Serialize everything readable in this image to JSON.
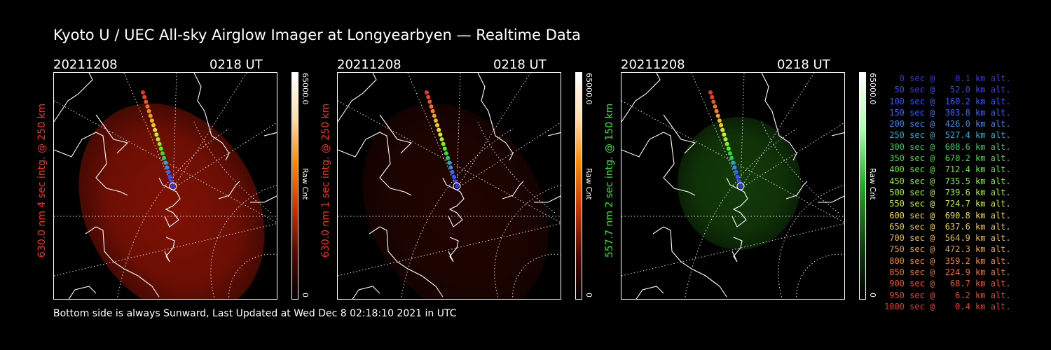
{
  "title": "Kyoto U / UEC All-sky Airglow Imager at Longyearbyen — Realtime Data",
  "footer": "Bottom side is always Sunward, Last Updated at Wed Dec  8 02:18:10 2021 in UTC",
  "panels": [
    {
      "date": "20211208",
      "time": "0218 UT",
      "side_label": "630.0 nm 4 sec intg. @ 250 km",
      "side_color": "#ff2a1a",
      "colorbar_max": "65000.0",
      "colorbar_min": "0",
      "colorbar_unit": "Raw Cnt",
      "tint": "red",
      "brightness": "bright"
    },
    {
      "date": "20211208",
      "time": "0218 UT",
      "side_label": "630.0 nm 1 sec intg. @ 250 km",
      "side_color": "#ff2a1a",
      "colorbar_max": "65000.0",
      "colorbar_min": "0",
      "colorbar_unit": "Raw Cnt",
      "tint": "red",
      "brightness": "dim"
    },
    {
      "date": "20211208",
      "time": "0218 UT",
      "side_label": "557.7 nm 2 sec intg. @ 150 km",
      "side_color": "#22ee22",
      "colorbar_max": "65000.0",
      "colorbar_min": "0",
      "colorbar_unit": "Raw Cnt",
      "tint": "green",
      "brightness": "medium"
    }
  ],
  "legend": [
    {
      "text": "   0 sec @    0.1 km alt.",
      "color": "#3333ff"
    },
    {
      "text": "  50 sec @   52.0 km alt.",
      "color": "#3344ff"
    },
    {
      "text": " 100 sec @  160.2 km alt.",
      "color": "#3355ff"
    },
    {
      "text": " 150 sec @  303.8 km alt.",
      "color": "#3366ff"
    },
    {
      "text": " 200 sec @  426.0 km alt.",
      "color": "#3388ee"
    },
    {
      "text": " 250 sec @  527.4 km alt.",
      "color": "#22aacc"
    },
    {
      "text": " 300 sec @  608.6 km alt.",
      "color": "#22cc66"
    },
    {
      "text": " 350 sec @  670.2 km alt.",
      "color": "#33dd33"
    },
    {
      "text": " 400 sec @  712.4 km alt.",
      "color": "#55ee22"
    },
    {
      "text": " 450 sec @  735.5 km alt.",
      "color": "#88ee22"
    },
    {
      "text": " 500 sec @  739.6 km alt.",
      "color": "#aaee22"
    },
    {
      "text": " 550 sec @  724.7 km alt.",
      "color": "#ccee22"
    },
    {
      "text": " 600 sec @  690.8 km alt.",
      "color": "#eedd22"
    },
    {
      "text": " 650 sec @  637.6 km alt.",
      "color": "#eecc22"
    },
    {
      "text": " 700 sec @  564.9 km alt.",
      "color": "#eebb22"
    },
    {
      "text": " 750 sec @  472.3 km alt.",
      "color": "#eea022"
    },
    {
      "text": " 800 sec @  359.2 km alt.",
      "color": "#ee8822"
    },
    {
      "text": " 850 sec @  224.9 km alt.",
      "color": "#ee7022"
    },
    {
      "text": " 900 sec @   68.7 km alt.",
      "color": "#ee5522"
    },
    {
      "text": " 950 sec @    6.2 km alt.",
      "color": "#ee4422"
    },
    {
      "text": "1000 sec @    0.4 km alt.",
      "color": "#ee3322"
    }
  ]
}
